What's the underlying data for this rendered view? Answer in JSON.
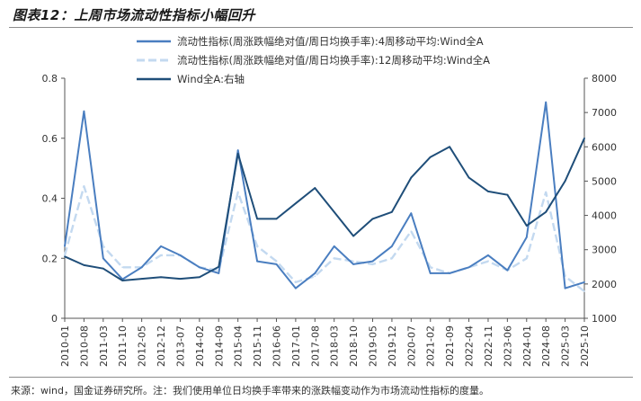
{
  "title": "图表12：上周市场流动性指标小幅回升",
  "source": "来源：wind，国金证券研究所。注：我们使用单位日均换手率带来的涨跌幅变动作为市场流动性指标的度量。",
  "chart_data": {
    "type": "line",
    "x": [
      "2010-01",
      "2010-08",
      "2011-03",
      "2011-10",
      "2012-05",
      "2012-12",
      "2013-07",
      "2014-02",
      "2014-09",
      "2015-04",
      "2015-11",
      "2016-06",
      "2017-01",
      "2017-08",
      "2018-03",
      "2018-10",
      "2019-05",
      "2019-12",
      "2020-07",
      "2021-02",
      "2021-09",
      "2022-04",
      "2022-11",
      "2023-06",
      "2024-01",
      "2024-08",
      "2025-03",
      "2025-10"
    ],
    "left_axis": {
      "ylim": [
        0,
        0.8
      ],
      "ticks": [
        "0",
        "0.2",
        "0.4",
        "0.6",
        "0.8"
      ]
    },
    "right_axis": {
      "ylim": [
        1000,
        8000
      ],
      "ticks": [
        "1000",
        "2000",
        "3000",
        "4000",
        "5000",
        "6000",
        "7000",
        "8000"
      ]
    },
    "legend_position": "top",
    "series": [
      {
        "name": "流动性指标(周涨跌幅绝对值/周日均换手率):4周移动平均:Wind全A",
        "axis": "left",
        "color": "#4a7ec0",
        "values": [
          0.24,
          0.69,
          0.2,
          0.13,
          0.17,
          0.24,
          0.21,
          0.17,
          0.15,
          0.56,
          0.19,
          0.18,
          0.1,
          0.15,
          0.24,
          0.18,
          0.19,
          0.24,
          0.35,
          0.15,
          0.15,
          0.17,
          0.21,
          0.16,
          0.27,
          0.72,
          0.1,
          0.12
        ]
      },
      {
        "name": "流动性指标(周涨跌幅绝对值/周日均换手率):12周移动平均:Wind全A",
        "axis": "left",
        "color": "#c3d9f0",
        "values": [
          0.21,
          0.44,
          0.24,
          0.17,
          0.17,
          0.21,
          0.21,
          0.17,
          0.16,
          0.42,
          0.24,
          0.19,
          0.12,
          0.14,
          0.2,
          0.19,
          0.18,
          0.2,
          0.29,
          0.17,
          0.15,
          0.17,
          0.19,
          0.16,
          0.2,
          0.42,
          0.14,
          0.09
        ]
      },
      {
        "name": "Wind全A:右轴",
        "axis": "right",
        "color": "#1f4e79",
        "values": [
          2800,
          2550,
          2450,
          2100,
          2150,
          2200,
          2150,
          2200,
          2500,
          5800,
          3900,
          3900,
          4350,
          4800,
          4100,
          3400,
          3900,
          4100,
          5100,
          5700,
          6000,
          5100,
          4700,
          4600,
          3700,
          4100,
          5000,
          6250
        ]
      }
    ]
  }
}
